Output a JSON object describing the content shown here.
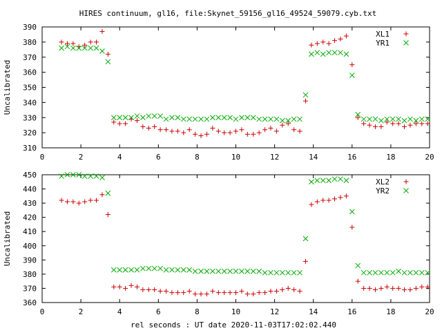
{
  "chart_data": [
    {
      "type": "scatter",
      "title": "HIRES continuum, gl16, file:Skynet_59156_gl16_49524_59079.cyb.txt",
      "xlabel": "",
      "ylabel": "Uncalibrated",
      "xlim": [
        0,
        20
      ],
      "ylim": [
        310,
        390
      ],
      "xticks": [
        "0",
        "2",
        "4",
        "6",
        "8",
        "10",
        "12",
        "14",
        "16",
        "18",
        "20"
      ],
      "yticks": [
        "310",
        "320",
        "330",
        "340",
        "350",
        "360",
        "370",
        "380",
        "390"
      ],
      "grid": false,
      "legend_position": "top-right",
      "series": [
        {
          "name": "XL1",
          "marker": "plus",
          "color": "#cc0000",
          "x": [
            1.0,
            1.3,
            1.6,
            1.9,
            2.2,
            2.5,
            2.8,
            3.1,
            3.4,
            3.7,
            4.0,
            4.3,
            4.6,
            4.9,
            5.2,
            5.5,
            5.8,
            6.1,
            6.4,
            6.7,
            7.0,
            7.3,
            7.6,
            7.9,
            8.2,
            8.5,
            8.8,
            9.1,
            9.4,
            9.7,
            10.0,
            10.3,
            10.6,
            10.9,
            11.2,
            11.5,
            11.8,
            12.1,
            12.4,
            12.7,
            13.0,
            13.3,
            13.6,
            13.9,
            14.2,
            14.5,
            14.8,
            15.1,
            15.4,
            15.7,
            16.0,
            16.3,
            16.6,
            16.9,
            17.2,
            17.5,
            17.8,
            18.1,
            18.4,
            18.7,
            19.0,
            19.3,
            19.6,
            19.9
          ],
          "y": [
            380,
            379,
            379,
            377,
            378,
            380,
            380,
            387,
            372,
            327,
            326,
            326,
            329,
            328,
            324,
            323,
            324,
            322,
            322,
            321,
            321,
            320,
            322,
            319,
            318,
            319,
            323,
            321,
            320,
            320,
            321,
            322,
            319,
            319,
            320,
            322,
            323,
            321,
            325,
            326,
            322,
            321,
            341,
            378,
            379,
            380,
            379,
            381,
            382,
            384,
            365,
            330,
            326,
            325,
            324,
            324,
            327,
            326,
            326,
            324,
            325,
            326,
            326,
            326
          ]
        },
        {
          "name": "YR1",
          "marker": "cross",
          "color": "#00aa00",
          "x": [
            1.0,
            1.3,
            1.6,
            1.9,
            2.2,
            2.5,
            2.8,
            3.1,
            3.4,
            3.7,
            4.0,
            4.3,
            4.6,
            4.9,
            5.2,
            5.5,
            5.8,
            6.1,
            6.4,
            6.7,
            7.0,
            7.3,
            7.6,
            7.9,
            8.2,
            8.5,
            8.8,
            9.1,
            9.4,
            9.7,
            10.0,
            10.3,
            10.6,
            10.9,
            11.2,
            11.5,
            11.8,
            12.1,
            12.4,
            12.7,
            13.0,
            13.3,
            13.6,
            13.9,
            14.2,
            14.5,
            14.8,
            15.1,
            15.4,
            15.7,
            16.0,
            16.3,
            16.6,
            16.9,
            17.2,
            17.5,
            17.8,
            18.1,
            18.4,
            18.7,
            19.0,
            19.3,
            19.6,
            19.9
          ],
          "y": [
            376,
            377,
            376,
            376,
            376,
            376,
            376,
            374,
            367,
            330,
            330,
            330,
            330,
            331,
            330,
            331,
            331,
            331,
            329,
            330,
            330,
            329,
            329,
            329,
            329,
            329,
            330,
            330,
            330,
            330,
            329,
            330,
            330,
            330,
            329,
            329,
            329,
            329,
            328,
            328,
            329,
            329,
            345,
            372,
            373,
            372,
            373,
            373,
            373,
            372,
            358,
            332,
            329,
            329,
            329,
            328,
            329,
            329,
            329,
            328,
            329,
            328,
            329,
            329
          ]
        }
      ]
    },
    {
      "type": "scatter",
      "title": "",
      "xlabel": "rel seconds : UT date 2020-11-03T17:02:02.440",
      "ylabel": "Uncalibrated",
      "xlim": [
        0,
        20
      ],
      "ylim": [
        360,
        450
      ],
      "xticks": [
        "0",
        "2",
        "4",
        "6",
        "8",
        "10",
        "12",
        "14",
        "16",
        "18",
        "20"
      ],
      "yticks": [
        "360",
        "370",
        "380",
        "390",
        "400",
        "410",
        "420",
        "430",
        "440",
        "450"
      ],
      "grid": false,
      "legend_position": "top-right",
      "series": [
        {
          "name": "XL2",
          "marker": "plus",
          "color": "#cc0000",
          "x": [
            1.0,
            1.3,
            1.6,
            1.9,
            2.2,
            2.5,
            2.8,
            3.1,
            3.4,
            3.7,
            4.0,
            4.3,
            4.6,
            4.9,
            5.2,
            5.5,
            5.8,
            6.1,
            6.4,
            6.7,
            7.0,
            7.3,
            7.6,
            7.9,
            8.2,
            8.5,
            8.8,
            9.1,
            9.4,
            9.7,
            10.0,
            10.3,
            10.6,
            10.9,
            11.2,
            11.5,
            11.8,
            12.1,
            12.4,
            12.7,
            13.0,
            13.3,
            13.6,
            13.9,
            14.2,
            14.5,
            14.8,
            15.1,
            15.4,
            15.7,
            16.0,
            16.3,
            16.6,
            16.9,
            17.2,
            17.5,
            17.8,
            18.1,
            18.4,
            18.7,
            19.0,
            19.3,
            19.6,
            19.9
          ],
          "y": [
            432,
            431,
            431,
            430,
            431,
            432,
            432,
            436,
            422,
            371,
            371,
            370,
            372,
            371,
            369,
            369,
            369,
            368,
            368,
            367,
            367,
            367,
            368,
            366,
            366,
            366,
            368,
            367,
            367,
            367,
            367,
            368,
            366,
            366,
            367,
            367,
            368,
            368,
            369,
            370,
            369,
            368,
            389,
            429,
            431,
            432,
            432,
            433,
            434,
            435,
            413,
            375,
            370,
            370,
            369,
            370,
            371,
            370,
            370,
            369,
            369,
            370,
            371,
            371
          ]
        },
        {
          "name": "YR2",
          "marker": "cross",
          "color": "#00aa00",
          "x": [
            1.0,
            1.3,
            1.6,
            1.9,
            2.2,
            2.5,
            2.8,
            3.1,
            3.4,
            3.7,
            4.0,
            4.3,
            4.6,
            4.9,
            5.2,
            5.5,
            5.8,
            6.1,
            6.4,
            6.7,
            7.0,
            7.3,
            7.6,
            7.9,
            8.2,
            8.5,
            8.8,
            9.1,
            9.4,
            9.7,
            10.0,
            10.3,
            10.6,
            10.9,
            11.2,
            11.5,
            11.8,
            12.1,
            12.4,
            12.7,
            13.0,
            13.3,
            13.6,
            13.9,
            14.2,
            14.5,
            14.8,
            15.1,
            15.4,
            15.7,
            16.0,
            16.3,
            16.6,
            16.9,
            17.2,
            17.5,
            17.8,
            18.1,
            18.4,
            18.7,
            19.0,
            19.3,
            19.6,
            19.9
          ],
          "y": [
            449,
            450,
            450,
            450,
            449,
            449,
            449,
            448,
            437,
            383,
            383,
            383,
            383,
            383,
            384,
            384,
            384,
            384,
            383,
            383,
            383,
            383,
            383,
            382,
            382,
            382,
            382,
            382,
            382,
            382,
            382,
            382,
            382,
            382,
            382,
            381,
            381,
            381,
            381,
            381,
            381,
            381,
            405,
            445,
            446,
            446,
            446,
            447,
            447,
            446,
            424,
            386,
            381,
            381,
            381,
            381,
            381,
            381,
            382,
            381,
            381,
            381,
            381,
            381
          ]
        }
      ]
    }
  ]
}
